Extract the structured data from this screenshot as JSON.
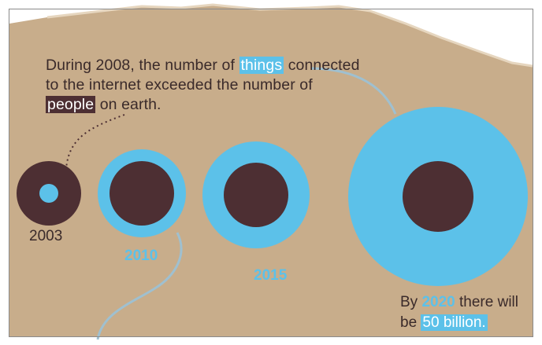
{
  "intro": {
    "part1": "During 2008, the number of ",
    "highlight1": "things",
    "part2": " connected to the internet exceeded the number of ",
    "highlight2": "people",
    "part3": " on earth."
  },
  "years": [
    {
      "label": "2003"
    },
    {
      "label": "2010"
    },
    {
      "label": "2015"
    },
    {
      "label": "2020"
    }
  ],
  "outro": {
    "prefix": "By ",
    "year": "2020",
    "mid": " there will be ",
    "amount": "50 billion."
  },
  "colors": {
    "paper": "#c8ad8b",
    "blue": "#5cc1e9",
    "dark": "#4d2f33"
  }
}
